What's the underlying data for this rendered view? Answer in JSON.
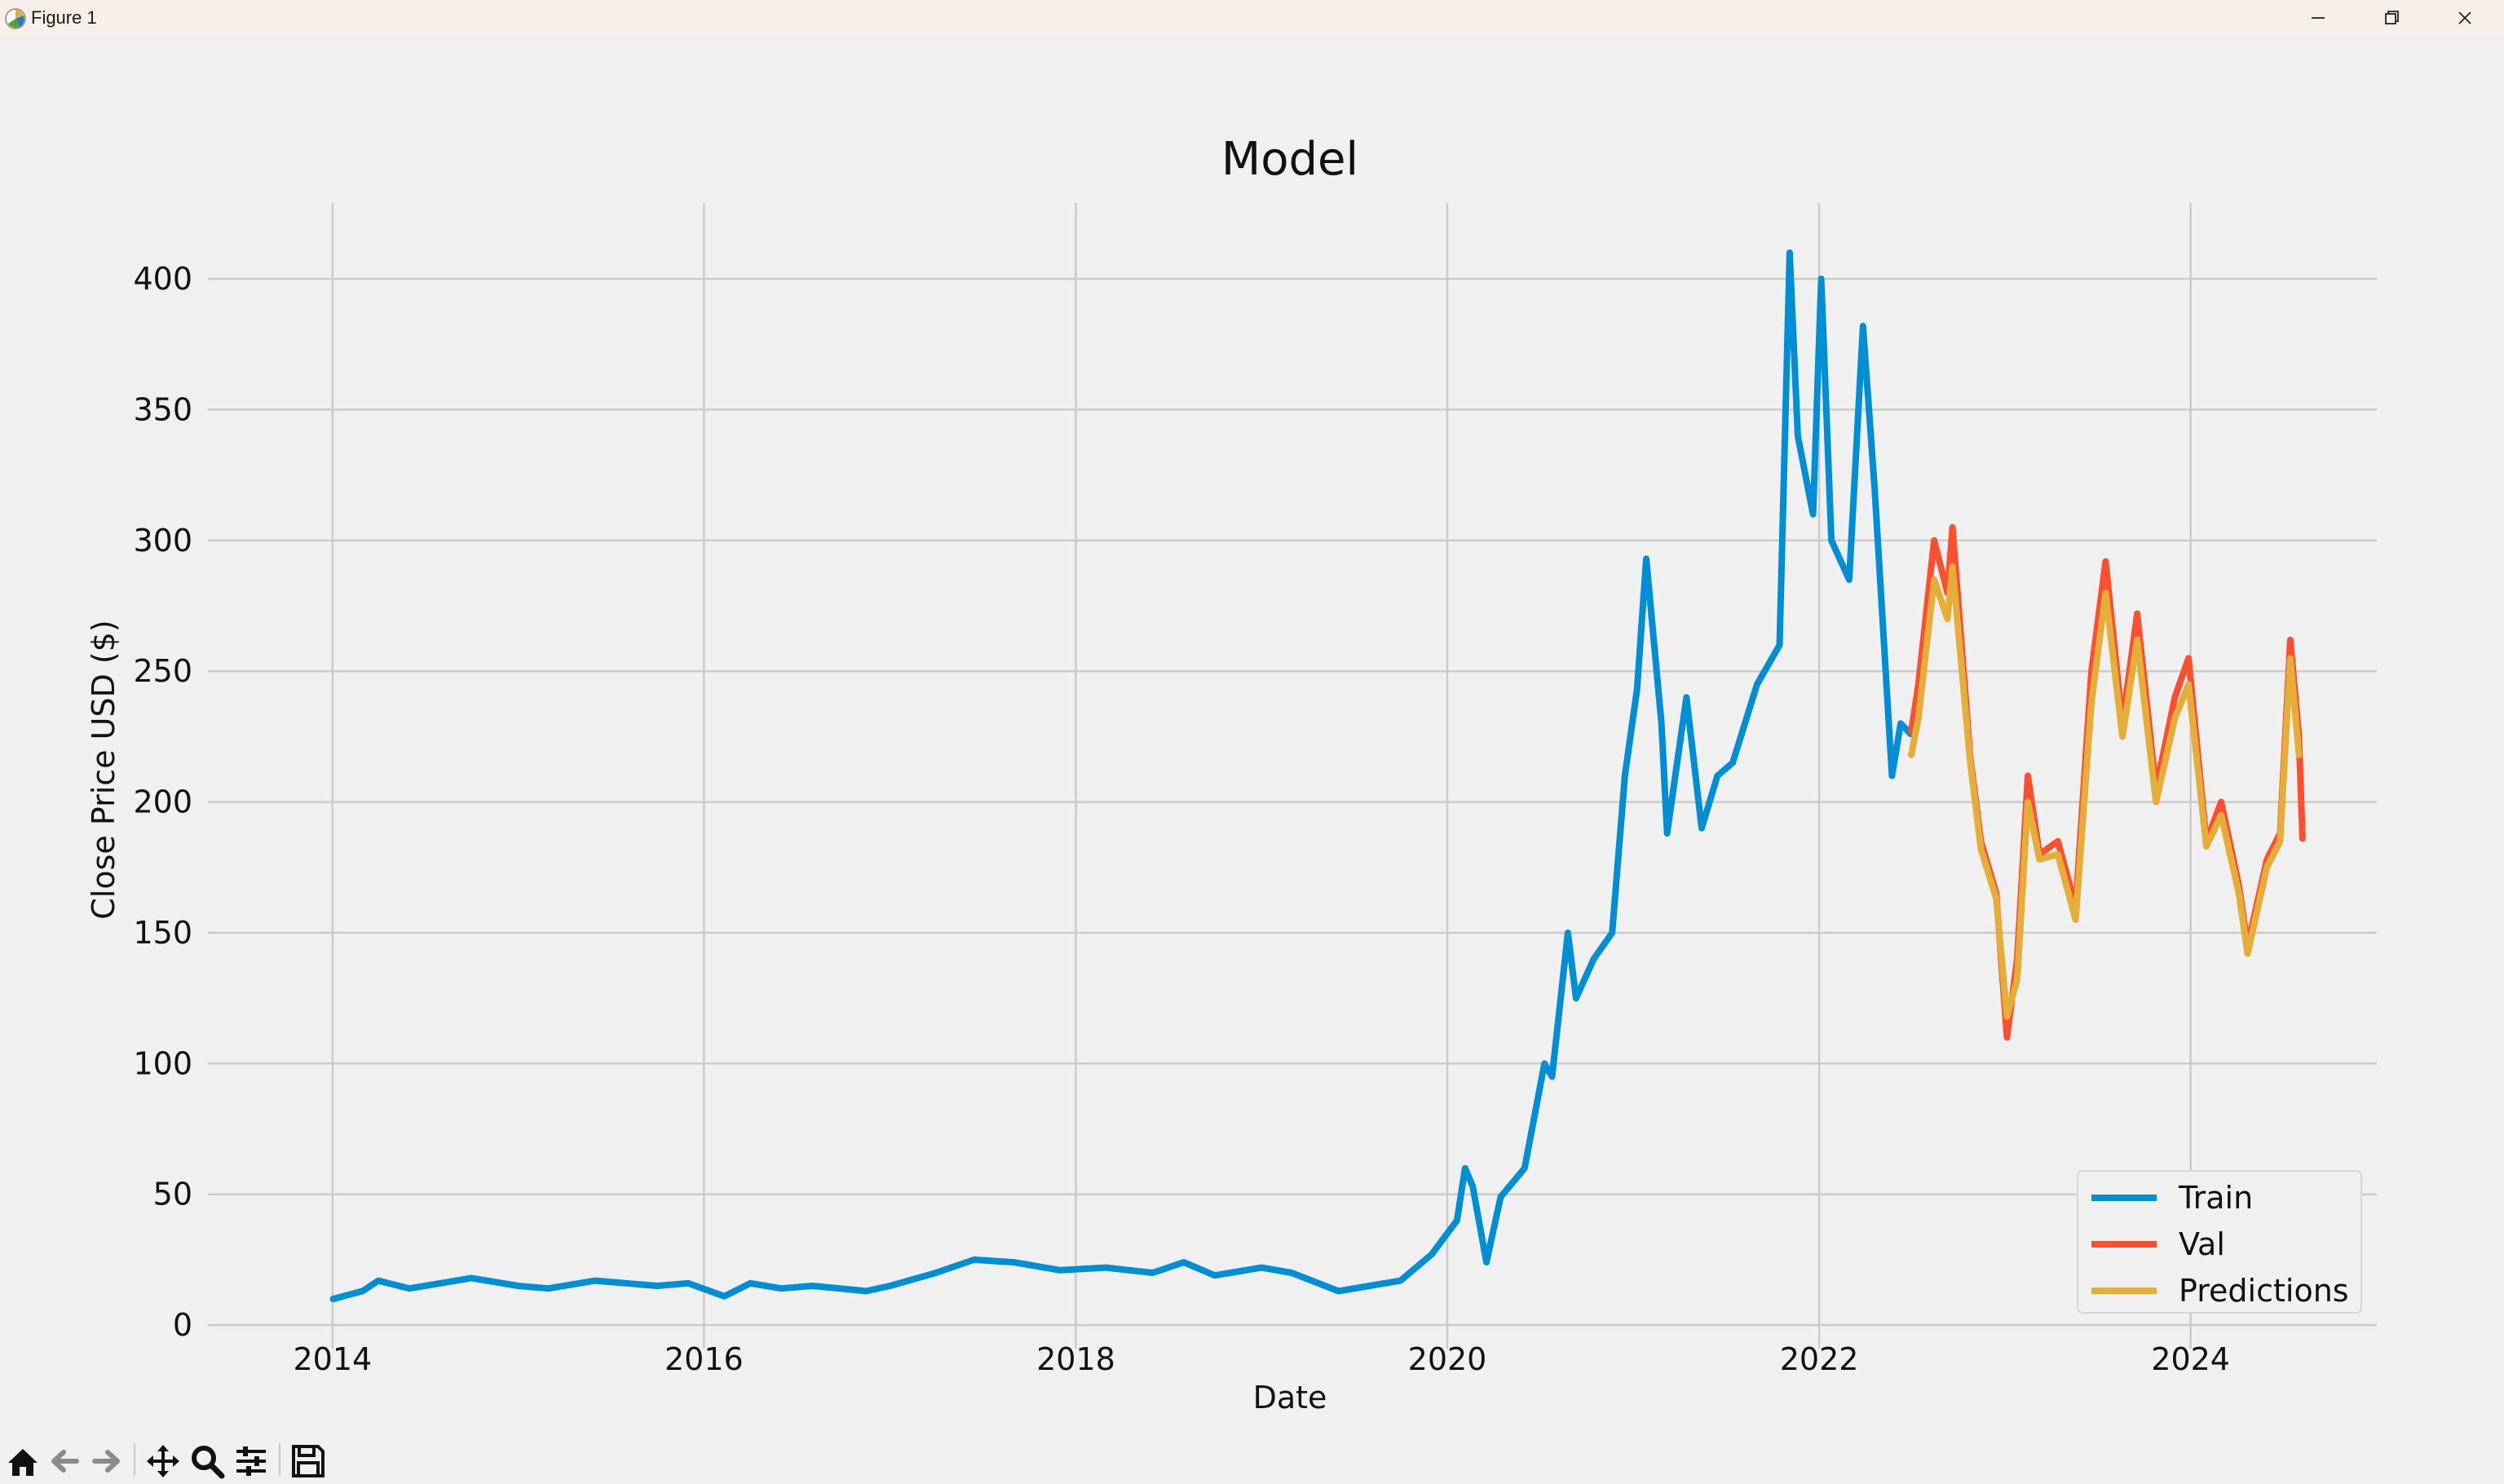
{
  "window": {
    "title": "Figure 1"
  },
  "toolbar": {
    "buttons": [
      {
        "icon": "home-icon"
      },
      {
        "icon": "back-arrow-icon"
      },
      {
        "icon": "forward-arrow-icon"
      },
      {
        "icon": "pan-icon"
      },
      {
        "icon": "zoom-icon"
      },
      {
        "icon": "configure-subplots-icon"
      },
      {
        "icon": "save-icon"
      }
    ]
  },
  "colors": {
    "background": "#f0f0f0",
    "grid": "#cbcbcb",
    "train": "#008fd5",
    "val": "#fc4f30",
    "predictions": "#e5ae38"
  },
  "chart_data": {
    "type": "line",
    "title": "Model",
    "xlabel": "Date",
    "ylabel": "Close Price USD ($)",
    "xlim": [
      "2013-05-01",
      "2025-01-01"
    ],
    "ylim": [
      -9,
      429
    ],
    "x_ticks": [
      "2014",
      "2016",
      "2018",
      "2020",
      "2022",
      "2024"
    ],
    "y_ticks": [
      0,
      50,
      100,
      150,
      200,
      250,
      300,
      350,
      400
    ],
    "grid": true,
    "legend_position": "bottom-right",
    "series": [
      {
        "name": "Train",
        "color": "#008fd5",
        "points": [
          [
            "2014-01-02",
            10
          ],
          [
            "2014-03-01",
            13
          ],
          [
            "2014-04-01",
            17
          ],
          [
            "2014-06-01",
            14
          ],
          [
            "2014-08-01",
            16
          ],
          [
            "2014-10-01",
            18
          ],
          [
            "2015-01-01",
            15
          ],
          [
            "2015-03-01",
            14
          ],
          [
            "2015-06-01",
            17
          ],
          [
            "2015-08-01",
            16
          ],
          [
            "2015-10-01",
            15
          ],
          [
            "2015-12-01",
            16
          ],
          [
            "2016-02-10",
            11
          ],
          [
            "2016-04-01",
            16
          ],
          [
            "2016-06-01",
            14
          ],
          [
            "2016-08-01",
            15
          ],
          [
            "2016-11-15",
            13
          ],
          [
            "2017-01-01",
            15
          ],
          [
            "2017-04-01",
            20
          ],
          [
            "2017-06-15",
            25
          ],
          [
            "2017-09-01",
            24
          ],
          [
            "2017-12-01",
            21
          ],
          [
            "2018-03-01",
            22
          ],
          [
            "2018-06-01",
            20
          ],
          [
            "2018-08-01",
            24
          ],
          [
            "2018-10-01",
            19
          ],
          [
            "2019-01-01",
            22
          ],
          [
            "2019-03-01",
            20
          ],
          [
            "2019-06-01",
            13
          ],
          [
            "2019-08-01",
            15
          ],
          [
            "2019-10-01",
            17
          ],
          [
            "2019-12-01",
            27
          ],
          [
            "2020-01-20",
            40
          ],
          [
            "2020-02-05",
            60
          ],
          [
            "2020-02-20",
            53
          ],
          [
            "2020-03-18",
            24
          ],
          [
            "2020-04-15",
            49
          ],
          [
            "2020-06-01",
            60
          ],
          [
            "2020-07-10",
            100
          ],
          [
            "2020-07-25",
            95
          ],
          [
            "2020-08-25",
            150
          ],
          [
            "2020-09-10",
            125
          ],
          [
            "2020-10-15",
            140
          ],
          [
            "2020-11-20",
            150
          ],
          [
            "2020-12-15",
            210
          ],
          [
            "2021-01-08",
            243
          ],
          [
            "2021-01-26",
            293
          ],
          [
            "2021-02-25",
            230
          ],
          [
            "2021-03-08",
            188
          ],
          [
            "2021-04-15",
            240
          ],
          [
            "2021-05-15",
            190
          ],
          [
            "2021-06-15",
            210
          ],
          [
            "2021-07-15",
            215
          ],
          [
            "2021-09-01",
            245
          ],
          [
            "2021-10-15",
            260
          ],
          [
            "2021-11-04",
            410
          ],
          [
            "2021-11-20",
            340
          ],
          [
            "2021-12-20",
            310
          ],
          [
            "2022-01-05",
            400
          ],
          [
            "2022-01-25",
            300
          ],
          [
            "2022-03-01",
            285
          ],
          [
            "2022-03-28",
            382
          ],
          [
            "2022-04-20",
            320
          ],
          [
            "2022-05-24",
            210
          ],
          [
            "2022-06-10",
            230
          ],
          [
            "2022-06-30",
            226
          ]
        ]
      },
      {
        "name": "Val",
        "color": "#fc4f30",
        "points": [
          [
            "2022-07-01",
            227
          ],
          [
            "2022-07-15",
            245
          ],
          [
            "2022-08-15",
            300
          ],
          [
            "2022-09-10",
            280
          ],
          [
            "2022-09-20",
            305
          ],
          [
            "2022-10-25",
            217
          ],
          [
            "2022-11-15",
            185
          ],
          [
            "2022-12-15",
            165
          ],
          [
            "2023-01-05",
            110
          ],
          [
            "2023-01-25",
            140
          ],
          [
            "2023-02-15",
            210
          ],
          [
            "2023-03-10",
            180
          ],
          [
            "2023-04-15",
            185
          ],
          [
            "2023-05-20",
            160
          ],
          [
            "2023-06-20",
            250
          ],
          [
            "2023-07-18",
            292
          ],
          [
            "2023-08-20",
            230
          ],
          [
            "2023-09-18",
            272
          ],
          [
            "2023-10-25",
            205
          ],
          [
            "2023-12-01",
            240
          ],
          [
            "2023-12-28",
            255
          ],
          [
            "2024-02-01",
            185
          ],
          [
            "2024-03-01",
            200
          ],
          [
            "2024-04-05",
            168
          ],
          [
            "2024-04-22",
            145
          ],
          [
            "2024-05-30",
            178
          ],
          [
            "2024-06-25",
            188
          ],
          [
            "2024-07-15",
            262
          ],
          [
            "2024-08-01",
            225
          ],
          [
            "2024-08-08",
            186
          ]
        ]
      },
      {
        "name": "Predictions",
        "color": "#e5ae38",
        "points": [
          [
            "2022-07-01",
            218
          ],
          [
            "2022-07-15",
            232
          ],
          [
            "2022-08-15",
            285
          ],
          [
            "2022-09-10",
            270
          ],
          [
            "2022-09-20",
            290
          ],
          [
            "2022-10-25",
            215
          ],
          [
            "2022-11-15",
            182
          ],
          [
            "2022-12-15",
            163
          ],
          [
            "2023-01-05",
            118
          ],
          [
            "2023-01-25",
            132
          ],
          [
            "2023-02-15",
            200
          ],
          [
            "2023-03-10",
            178
          ],
          [
            "2023-04-15",
            180
          ],
          [
            "2023-05-20",
            155
          ],
          [
            "2023-06-20",
            238
          ],
          [
            "2023-07-18",
            280
          ],
          [
            "2023-08-20",
            225
          ],
          [
            "2023-09-18",
            262
          ],
          [
            "2023-10-25",
            200
          ],
          [
            "2023-12-01",
            232
          ],
          [
            "2023-12-28",
            245
          ],
          [
            "2024-02-01",
            183
          ],
          [
            "2024-03-01",
            195
          ],
          [
            "2024-04-05",
            165
          ],
          [
            "2024-04-22",
            142
          ],
          [
            "2024-05-30",
            175
          ],
          [
            "2024-06-25",
            185
          ],
          [
            "2024-07-15",
            255
          ],
          [
            "2024-08-01",
            218
          ]
        ]
      }
    ]
  }
}
